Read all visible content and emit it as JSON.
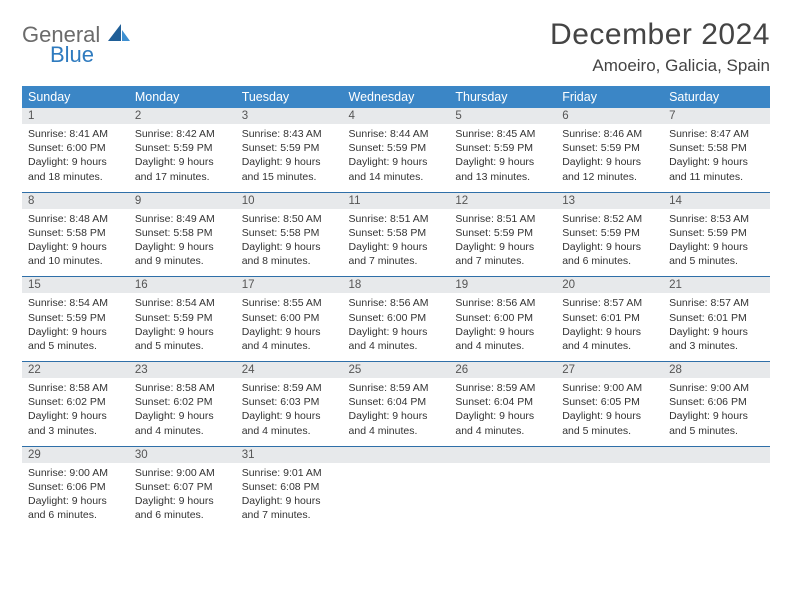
{
  "logo": {
    "general": "General",
    "blue": "Blue"
  },
  "title": "December 2024",
  "location": "Amoeiro, Galicia, Spain",
  "colors": {
    "header_bg": "#3b86c6",
    "header_text": "#ffffff",
    "daynum_bg": "#e7e9eb",
    "rule": "#2f6fa8",
    "logo_gray": "#6b6b6b",
    "logo_blue": "#2f7bbf",
    "sail_dark": "#1f5e97",
    "sail_light": "#3d8fd1"
  },
  "dow": [
    "Sunday",
    "Monday",
    "Tuesday",
    "Wednesday",
    "Thursday",
    "Friday",
    "Saturday"
  ],
  "weeks": [
    [
      {
        "n": "1",
        "sr": "Sunrise: 8:41 AM",
        "ss": "Sunset: 6:00 PM",
        "d1": "Daylight: 9 hours",
        "d2": "and 18 minutes."
      },
      {
        "n": "2",
        "sr": "Sunrise: 8:42 AM",
        "ss": "Sunset: 5:59 PM",
        "d1": "Daylight: 9 hours",
        "d2": "and 17 minutes."
      },
      {
        "n": "3",
        "sr": "Sunrise: 8:43 AM",
        "ss": "Sunset: 5:59 PM",
        "d1": "Daylight: 9 hours",
        "d2": "and 15 minutes."
      },
      {
        "n": "4",
        "sr": "Sunrise: 8:44 AM",
        "ss": "Sunset: 5:59 PM",
        "d1": "Daylight: 9 hours",
        "d2": "and 14 minutes."
      },
      {
        "n": "5",
        "sr": "Sunrise: 8:45 AM",
        "ss": "Sunset: 5:59 PM",
        "d1": "Daylight: 9 hours",
        "d2": "and 13 minutes."
      },
      {
        "n": "6",
        "sr": "Sunrise: 8:46 AM",
        "ss": "Sunset: 5:59 PM",
        "d1": "Daylight: 9 hours",
        "d2": "and 12 minutes."
      },
      {
        "n": "7",
        "sr": "Sunrise: 8:47 AM",
        "ss": "Sunset: 5:58 PM",
        "d1": "Daylight: 9 hours",
        "d2": "and 11 minutes."
      }
    ],
    [
      {
        "n": "8",
        "sr": "Sunrise: 8:48 AM",
        "ss": "Sunset: 5:58 PM",
        "d1": "Daylight: 9 hours",
        "d2": "and 10 minutes."
      },
      {
        "n": "9",
        "sr": "Sunrise: 8:49 AM",
        "ss": "Sunset: 5:58 PM",
        "d1": "Daylight: 9 hours",
        "d2": "and 9 minutes."
      },
      {
        "n": "10",
        "sr": "Sunrise: 8:50 AM",
        "ss": "Sunset: 5:58 PM",
        "d1": "Daylight: 9 hours",
        "d2": "and 8 minutes."
      },
      {
        "n": "11",
        "sr": "Sunrise: 8:51 AM",
        "ss": "Sunset: 5:58 PM",
        "d1": "Daylight: 9 hours",
        "d2": "and 7 minutes."
      },
      {
        "n": "12",
        "sr": "Sunrise: 8:51 AM",
        "ss": "Sunset: 5:59 PM",
        "d1": "Daylight: 9 hours",
        "d2": "and 7 minutes."
      },
      {
        "n": "13",
        "sr": "Sunrise: 8:52 AM",
        "ss": "Sunset: 5:59 PM",
        "d1": "Daylight: 9 hours",
        "d2": "and 6 minutes."
      },
      {
        "n": "14",
        "sr": "Sunrise: 8:53 AM",
        "ss": "Sunset: 5:59 PM",
        "d1": "Daylight: 9 hours",
        "d2": "and 5 minutes."
      }
    ],
    [
      {
        "n": "15",
        "sr": "Sunrise: 8:54 AM",
        "ss": "Sunset: 5:59 PM",
        "d1": "Daylight: 9 hours",
        "d2": "and 5 minutes."
      },
      {
        "n": "16",
        "sr": "Sunrise: 8:54 AM",
        "ss": "Sunset: 5:59 PM",
        "d1": "Daylight: 9 hours",
        "d2": "and 5 minutes."
      },
      {
        "n": "17",
        "sr": "Sunrise: 8:55 AM",
        "ss": "Sunset: 6:00 PM",
        "d1": "Daylight: 9 hours",
        "d2": "and 4 minutes."
      },
      {
        "n": "18",
        "sr": "Sunrise: 8:56 AM",
        "ss": "Sunset: 6:00 PM",
        "d1": "Daylight: 9 hours",
        "d2": "and 4 minutes."
      },
      {
        "n": "19",
        "sr": "Sunrise: 8:56 AM",
        "ss": "Sunset: 6:00 PM",
        "d1": "Daylight: 9 hours",
        "d2": "and 4 minutes."
      },
      {
        "n": "20",
        "sr": "Sunrise: 8:57 AM",
        "ss": "Sunset: 6:01 PM",
        "d1": "Daylight: 9 hours",
        "d2": "and 4 minutes."
      },
      {
        "n": "21",
        "sr": "Sunrise: 8:57 AM",
        "ss": "Sunset: 6:01 PM",
        "d1": "Daylight: 9 hours",
        "d2": "and 3 minutes."
      }
    ],
    [
      {
        "n": "22",
        "sr": "Sunrise: 8:58 AM",
        "ss": "Sunset: 6:02 PM",
        "d1": "Daylight: 9 hours",
        "d2": "and 3 minutes."
      },
      {
        "n": "23",
        "sr": "Sunrise: 8:58 AM",
        "ss": "Sunset: 6:02 PM",
        "d1": "Daylight: 9 hours",
        "d2": "and 4 minutes."
      },
      {
        "n": "24",
        "sr": "Sunrise: 8:59 AM",
        "ss": "Sunset: 6:03 PM",
        "d1": "Daylight: 9 hours",
        "d2": "and 4 minutes."
      },
      {
        "n": "25",
        "sr": "Sunrise: 8:59 AM",
        "ss": "Sunset: 6:04 PM",
        "d1": "Daylight: 9 hours",
        "d2": "and 4 minutes."
      },
      {
        "n": "26",
        "sr": "Sunrise: 8:59 AM",
        "ss": "Sunset: 6:04 PM",
        "d1": "Daylight: 9 hours",
        "d2": "and 4 minutes."
      },
      {
        "n": "27",
        "sr": "Sunrise: 9:00 AM",
        "ss": "Sunset: 6:05 PM",
        "d1": "Daylight: 9 hours",
        "d2": "and 5 minutes."
      },
      {
        "n": "28",
        "sr": "Sunrise: 9:00 AM",
        "ss": "Sunset: 6:06 PM",
        "d1": "Daylight: 9 hours",
        "d2": "and 5 minutes."
      }
    ],
    [
      {
        "n": "29",
        "sr": "Sunrise: 9:00 AM",
        "ss": "Sunset: 6:06 PM",
        "d1": "Daylight: 9 hours",
        "d2": "and 6 minutes."
      },
      {
        "n": "30",
        "sr": "Sunrise: 9:00 AM",
        "ss": "Sunset: 6:07 PM",
        "d1": "Daylight: 9 hours",
        "d2": "and 6 minutes."
      },
      {
        "n": "31",
        "sr": "Sunrise: 9:01 AM",
        "ss": "Sunset: 6:08 PM",
        "d1": "Daylight: 9 hours",
        "d2": "and 7 minutes."
      },
      {
        "n": "",
        "sr": "",
        "ss": "",
        "d1": "",
        "d2": ""
      },
      {
        "n": "",
        "sr": "",
        "ss": "",
        "d1": "",
        "d2": ""
      },
      {
        "n": "",
        "sr": "",
        "ss": "",
        "d1": "",
        "d2": ""
      },
      {
        "n": "",
        "sr": "",
        "ss": "",
        "d1": "",
        "d2": ""
      }
    ]
  ]
}
